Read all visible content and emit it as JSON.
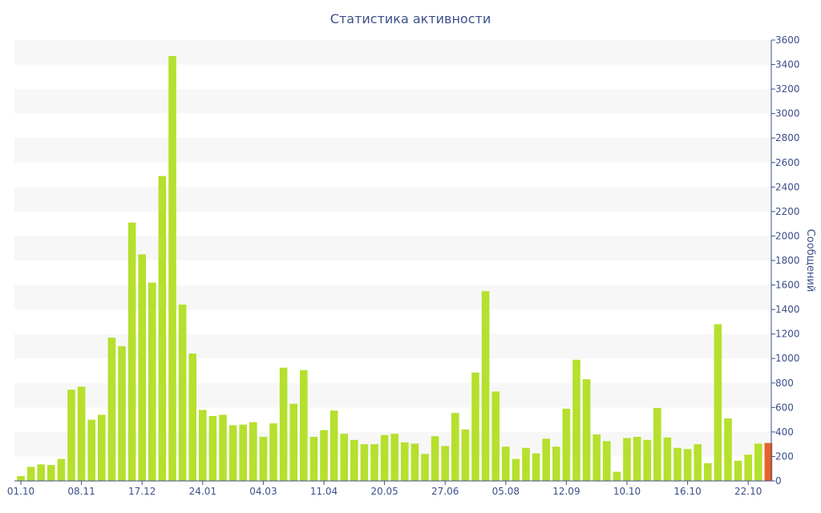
{
  "chart_data": {
    "type": "bar",
    "title": "Статистика активности",
    "ylabel": "Сообщений",
    "ylim": [
      0,
      3600
    ],
    "y_ticks": [
      0,
      200,
      400,
      600,
      800,
      1000,
      1200,
      1400,
      1600,
      1800,
      2000,
      2200,
      2400,
      2600,
      2800,
      3000,
      3200,
      3400,
      3600
    ],
    "y_axis_position": "right",
    "x_tick_labels": [
      {
        "index": 0,
        "label": "01.10"
      },
      {
        "index": 6,
        "label": "08.11"
      },
      {
        "index": 12,
        "label": "17.12"
      },
      {
        "index": 18,
        "label": "24.01"
      },
      {
        "index": 24,
        "label": "04.03"
      },
      {
        "index": 30,
        "label": "11.04"
      },
      {
        "index": 36,
        "label": "20.05"
      },
      {
        "index": 42,
        "label": "27.06"
      },
      {
        "index": 48,
        "label": "05.08"
      },
      {
        "index": 54,
        "label": "12.09"
      },
      {
        "index": 60,
        "label": "10.10"
      },
      {
        "index": 66,
        "label": "16.10"
      },
      {
        "index": 72,
        "label": "22.10"
      }
    ],
    "grid": "alternating horizontal bands",
    "bar_color": "#b5e02d",
    "highlight_color": "#e8622a",
    "highlight_index": 74,
    "values": [
      40,
      115,
      135,
      130,
      180,
      745,
      770,
      500,
      540,
      1170,
      1100,
      2110,
      1850,
      1620,
      2490,
      3470,
      1440,
      1040,
      580,
      530,
      540,
      455,
      460,
      480,
      360,
      470,
      925,
      630,
      905,
      360,
      415,
      575,
      385,
      335,
      300,
      300,
      375,
      385,
      315,
      305,
      220,
      365,
      285,
      555,
      420,
      885,
      1550,
      730,
      280,
      180,
      270,
      225,
      345,
      280,
      590,
      990,
      830,
      380,
      325,
      75,
      350,
      360,
      335,
      595,
      355,
      270,
      260,
      300,
      145,
      1280,
      510,
      165,
      215,
      305,
      310
    ]
  }
}
